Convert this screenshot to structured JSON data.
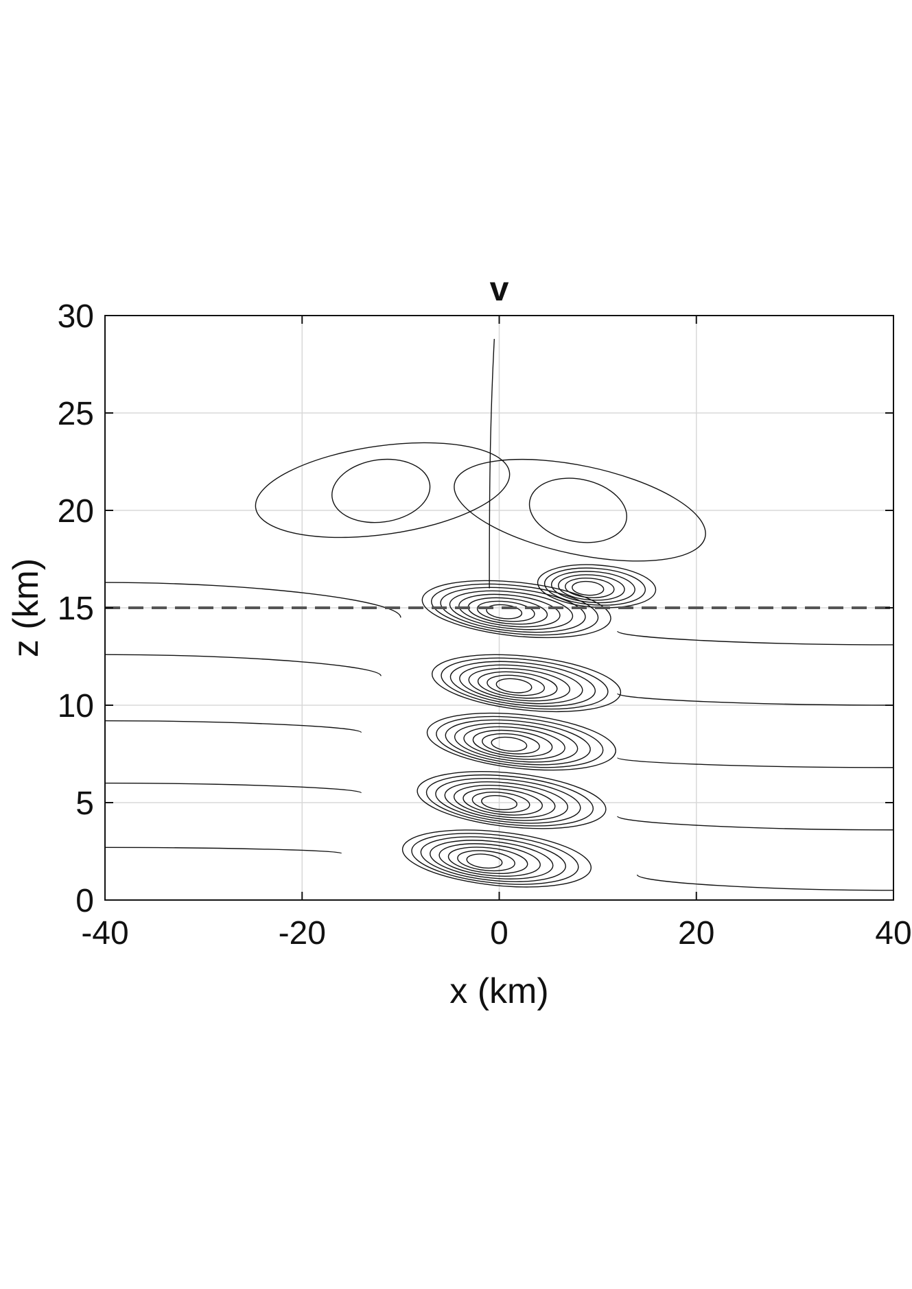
{
  "chart_data": {
    "type": "contour",
    "title": "v",
    "xlabel": "x (km)",
    "ylabel": "z (km)",
    "xlim": [
      -40,
      40
    ],
    "ylim": [
      0,
      30
    ],
    "x_ticks": [
      -40,
      -20,
      0,
      20,
      40
    ],
    "y_ticks": [
      0,
      5,
      10,
      15,
      20,
      25,
      30
    ],
    "x_tick_labels": [
      "-40",
      "-20",
      "0",
      "20",
      "40"
    ],
    "y_tick_labels": [
      "0",
      "5",
      "10",
      "15",
      "20",
      "25",
      "30"
    ],
    "grid": true,
    "reference_line": {
      "z": 15,
      "style": "dashed",
      "color": "#555555"
    },
    "line_color": "#111111",
    "contour_centers": [
      {
        "x": 0.5,
        "z": 14.8,
        "sign": "-"
      },
      {
        "x": 1.5,
        "z": 11.0,
        "sign": "+"
      },
      {
        "x": 1.0,
        "z": 8.0,
        "sign": "-"
      },
      {
        "x": 0.0,
        "z": 5.0,
        "sign": "+"
      },
      {
        "x": -1.5,
        "z": 2.0,
        "sign": "-"
      },
      {
        "x": 9.0,
        "z": 16.0,
        "sign": "+"
      },
      {
        "x": -12.0,
        "z": 21.0,
        "sign": "+"
      },
      {
        "x": 8.0,
        "z": 20.0,
        "sign": "-"
      }
    ]
  }
}
